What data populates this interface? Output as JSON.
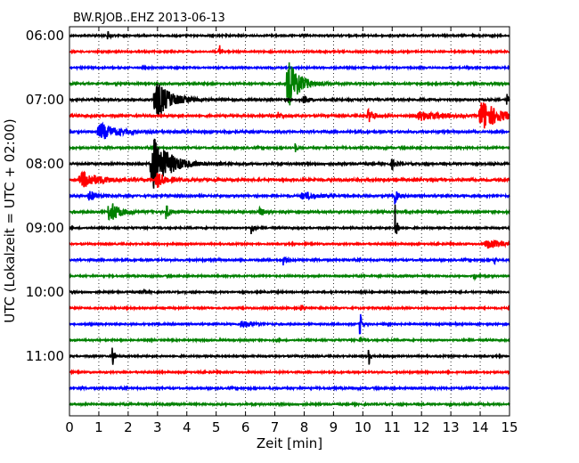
{
  "chart_data": {
    "type": "line",
    "title": "BW.RJOB..EHZ 2013-06-13",
    "xlabel": "Zeit  [min]",
    "ylabel": "UTC (Lokalzeit = UTC + 02:00)",
    "xlim": [
      0,
      15
    ],
    "x_ticks": [
      "0",
      "1",
      "2",
      "3",
      "4",
      "5",
      "6",
      "7",
      "8",
      "9",
      "10",
      "11",
      "12",
      "13",
      "14",
      "15"
    ],
    "y_ticks": [
      "06:00",
      "07:00",
      "08:00",
      "09:00",
      "10:00",
      "11:00"
    ],
    "grid": true,
    "colors": [
      "#000000",
      "#ff0000",
      "#0000ff",
      "#008000"
    ],
    "traces": [
      {
        "start": "06:00",
        "color": "#000000",
        "noise": 0.8,
        "events": [
          {
            "t": 1.3,
            "amp": 5,
            "width": 0.08
          }
        ]
      },
      {
        "start": "06:15",
        "color": "#ff0000",
        "noise": 0.8,
        "events": [
          {
            "t": 5.1,
            "amp": 9,
            "width": 0.06
          }
        ]
      },
      {
        "start": "06:30",
        "color": "#0000ff",
        "noise": 0.8,
        "events": []
      },
      {
        "start": "06:45",
        "color": "#008000",
        "noise": 0.9,
        "events": [
          {
            "t": 7.5,
            "amp": 26,
            "width": 0.35
          }
        ]
      },
      {
        "start": "07:00",
        "color": "#000000",
        "noise": 1.0,
        "events": [
          {
            "t": 3.0,
            "amp": 20,
            "width": 0.45
          },
          {
            "t": 14.9,
            "amp": 9,
            "width": 0.05
          },
          {
            "t": 8.0,
            "amp": 5,
            "width": 0.1
          }
        ]
      },
      {
        "start": "07:15",
        "color": "#ff0000",
        "noise": 1.0,
        "events": [
          {
            "t": 14.1,
            "amp": 17,
            "width": 0.5
          },
          {
            "t": 10.2,
            "amp": 7,
            "width": 0.2
          },
          {
            "t": 7.1,
            "amp": 4,
            "width": 0.1
          },
          {
            "t": 12.0,
            "amp": 5,
            "width": 0.6
          }
        ]
      },
      {
        "start": "07:30",
        "color": "#0000ff",
        "noise": 1.0,
        "events": [
          {
            "t": 1.1,
            "amp": 9,
            "width": 0.5
          }
        ]
      },
      {
        "start": "07:45",
        "color": "#008000",
        "noise": 0.9,
        "events": [
          {
            "t": 7.7,
            "amp": 5,
            "width": 0.05
          }
        ]
      },
      {
        "start": "08:00",
        "color": "#000000",
        "noise": 1.0,
        "events": [
          {
            "t": 2.9,
            "amp": 30,
            "width": 0.5
          },
          {
            "t": 11.0,
            "amp": 6,
            "width": 0.1
          }
        ]
      },
      {
        "start": "08:15",
        "color": "#ff0000",
        "noise": 1.2,
        "events": [
          {
            "t": 0.5,
            "amp": 8,
            "width": 0.6
          },
          {
            "t": 3.0,
            "amp": 8,
            "width": 0.3
          }
        ]
      },
      {
        "start": "08:30",
        "color": "#0000ff",
        "noise": 1.0,
        "events": [
          {
            "t": 0.7,
            "amp": 6,
            "width": 0.2
          },
          {
            "t": 11.1,
            "amp": 12,
            "width": 0.05
          },
          {
            "t": 8.0,
            "amp": 4,
            "width": 0.5
          }
        ]
      },
      {
        "start": "08:45",
        "color": "#008000",
        "noise": 1.0,
        "events": [
          {
            "t": 1.4,
            "amp": 12,
            "width": 0.3
          },
          {
            "t": 3.3,
            "amp": 9,
            "width": 0.1
          },
          {
            "t": 6.5,
            "amp": 5,
            "width": 0.1
          }
        ]
      },
      {
        "start": "09:00",
        "color": "#000000",
        "noise": 0.8,
        "events": [
          {
            "t": 11.1,
            "amp": 26,
            "width": 0.05
          },
          {
            "t": 6.2,
            "amp": 9,
            "width": 0.05
          }
        ]
      },
      {
        "start": "09:15",
        "color": "#ff0000",
        "noise": 0.8,
        "events": [
          {
            "t": 14.3,
            "amp": 5,
            "width": 0.5
          }
        ]
      },
      {
        "start": "09:30",
        "color": "#0000ff",
        "noise": 0.9,
        "events": [
          {
            "t": 7.3,
            "amp": 6,
            "width": 0.1
          },
          {
            "t": 14.5,
            "amp": 5,
            "width": 0.05
          }
        ]
      },
      {
        "start": "09:45",
        "color": "#008000",
        "noise": 0.8,
        "events": [
          {
            "t": 13.8,
            "amp": 4,
            "width": 0.1
          }
        ]
      },
      {
        "start": "10:00",
        "color": "#000000",
        "noise": 0.8,
        "events": [
          {
            "t": 2.5,
            "amp": 4,
            "width": 0.1
          }
        ]
      },
      {
        "start": "10:15",
        "color": "#ff0000",
        "noise": 0.8,
        "events": [
          {
            "t": 7.9,
            "amp": 5,
            "width": 0.05
          }
        ]
      },
      {
        "start": "10:30",
        "color": "#0000ff",
        "noise": 0.8,
        "events": [
          {
            "t": 5.9,
            "amp": 5,
            "width": 0.25
          },
          {
            "t": 9.9,
            "amp": 16,
            "width": 0.05
          }
        ]
      },
      {
        "start": "10:45",
        "color": "#008000",
        "noise": 0.8,
        "events": [
          {
            "t": 9.9,
            "amp": 5,
            "width": 0.05
          }
        ]
      },
      {
        "start": "11:00",
        "color": "#000000",
        "noise": 0.8,
        "events": [
          {
            "t": 1.45,
            "amp": 17,
            "width": 0.05
          },
          {
            "t": 10.2,
            "amp": 12,
            "width": 0.05
          }
        ]
      },
      {
        "start": "11:15",
        "color": "#ff0000",
        "noise": 0.8,
        "events": []
      },
      {
        "start": "11:30",
        "color": "#0000ff",
        "noise": 0.9,
        "events": []
      },
      {
        "start": "11:45",
        "color": "#008000",
        "noise": 0.9,
        "events": []
      }
    ]
  }
}
